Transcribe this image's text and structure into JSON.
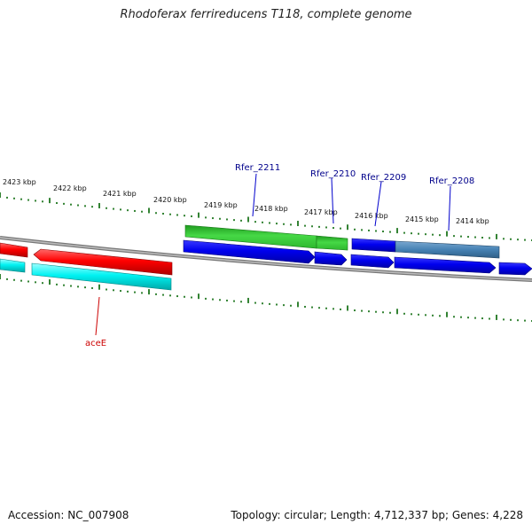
{
  "title": "Rhodoferax ferrireducens T118, complete genome",
  "footer": {
    "accession": "Accession: NC_007908",
    "topology": "Topology: circular; Length: 4,712,337 bp; Genes: 4,228"
  },
  "scale_labels": [
    "2423 kbp",
    "2422 kbp",
    "2421 kbp",
    "2420 kbp",
    "2419 kbp",
    "2418 kbp",
    "2417 kbp",
    "2416 kbp",
    "2415 kbp",
    "2414 kbp"
  ],
  "gene_labels": [
    {
      "text": "Rfer_2211",
      "color": "#00008b"
    },
    {
      "text": "Rfer_2210",
      "color": "#00008b"
    },
    {
      "text": "Rfer_2209",
      "color": "#00008b"
    },
    {
      "text": "Rfer_2208",
      "color": "#00008b"
    },
    {
      "text": "aceE",
      "color": "#cc0000"
    }
  ],
  "colors": {
    "red": "#ff0000",
    "cyan": "#00ffff",
    "green": "#33cc33",
    "blue": "#0000ee",
    "steelblue": "#4682b4",
    "tick": "#006400",
    "backbone": "#888888"
  }
}
